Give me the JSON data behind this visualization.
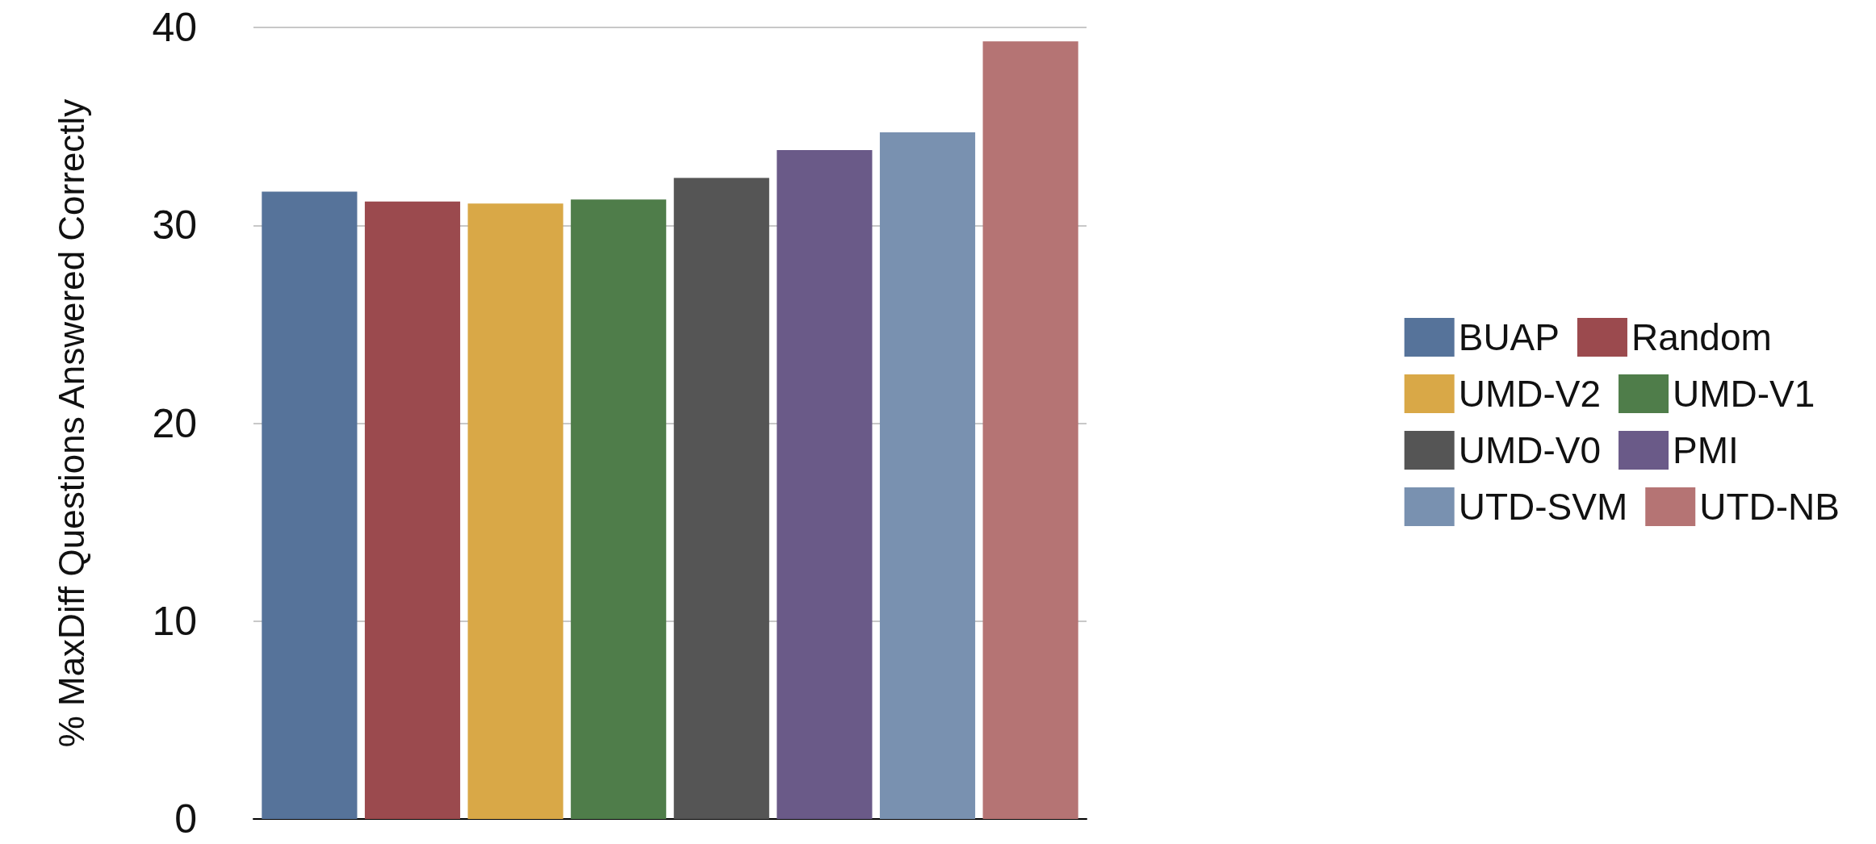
{
  "chart_data": {
    "type": "bar",
    "ylabel": "% MaxDiff Questions Answered Correctly",
    "categories": [
      null
    ],
    "series": [
      {
        "name": "BUAP",
        "color": "#56739a",
        "values": [
          31.7
        ]
      },
      {
        "name": "Random",
        "color": "#9b4a4e",
        "values": [
          31.2
        ]
      },
      {
        "name": "UMD-V2",
        "color": "#d9a847",
        "values": [
          31.1
        ]
      },
      {
        "name": "UMD-V1",
        "color": "#4f7d4a",
        "values": [
          31.3
        ]
      },
      {
        "name": "UMD-V0",
        "color": "#555555",
        "values": [
          32.4
        ]
      },
      {
        "name": "PMI",
        "color": "#6a5a88",
        "values": [
          33.8
        ]
      },
      {
        "name": "UTD-SVM",
        "color": "#7991b0",
        "values": [
          34.7
        ]
      },
      {
        "name": "UTD-NB",
        "color": "#b57474",
        "values": [
          39.3
        ]
      }
    ],
    "ylim": [
      0,
      40
    ],
    "yticks": [
      0,
      10,
      20,
      30,
      40
    ],
    "grid": "y",
    "legend": "right"
  }
}
